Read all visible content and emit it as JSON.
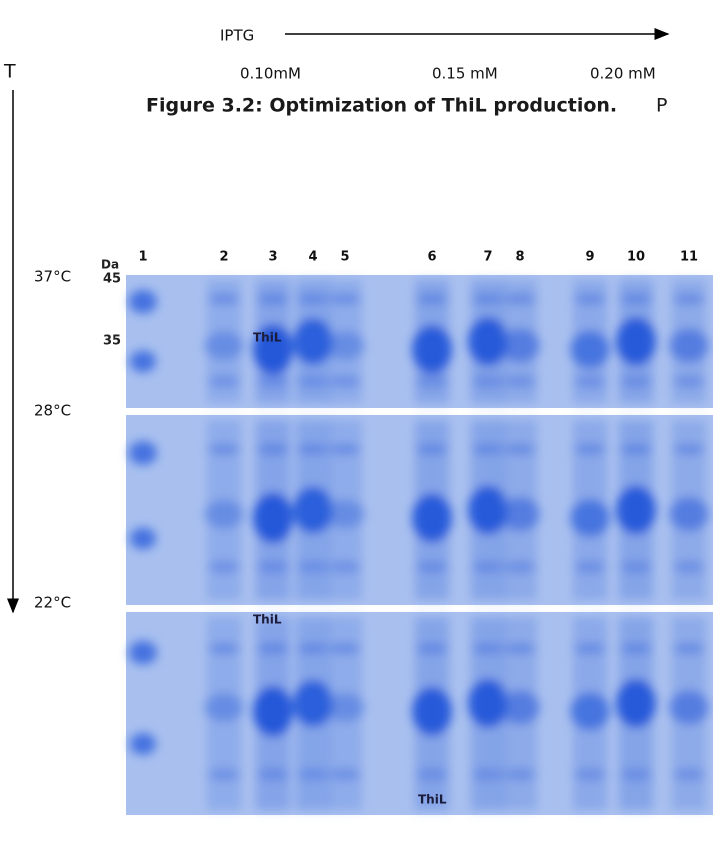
{
  "figure": {
    "iptg_label": "IPTG",
    "concentrations": [
      "0.10mM",
      "0.15 mM",
      "0.20 mM"
    ],
    "temperature_label": "T",
    "caption": {
      "bold": "Figure 3.2: Optimization of ThiL production.",
      "rest": "P"
    },
    "lanes": [
      "1",
      "2",
      "3",
      "4",
      "5",
      "6",
      "7",
      "8",
      "9",
      "10",
      "11"
    ],
    "temperatures": [
      "37°C",
      "28°C",
      "22°C"
    ],
    "marker": {
      "unit": "Da",
      "sizes": [
        "45",
        "35"
      ]
    },
    "band_labels": [
      "ThiL",
      "ThiL",
      "ThiL"
    ]
  }
}
